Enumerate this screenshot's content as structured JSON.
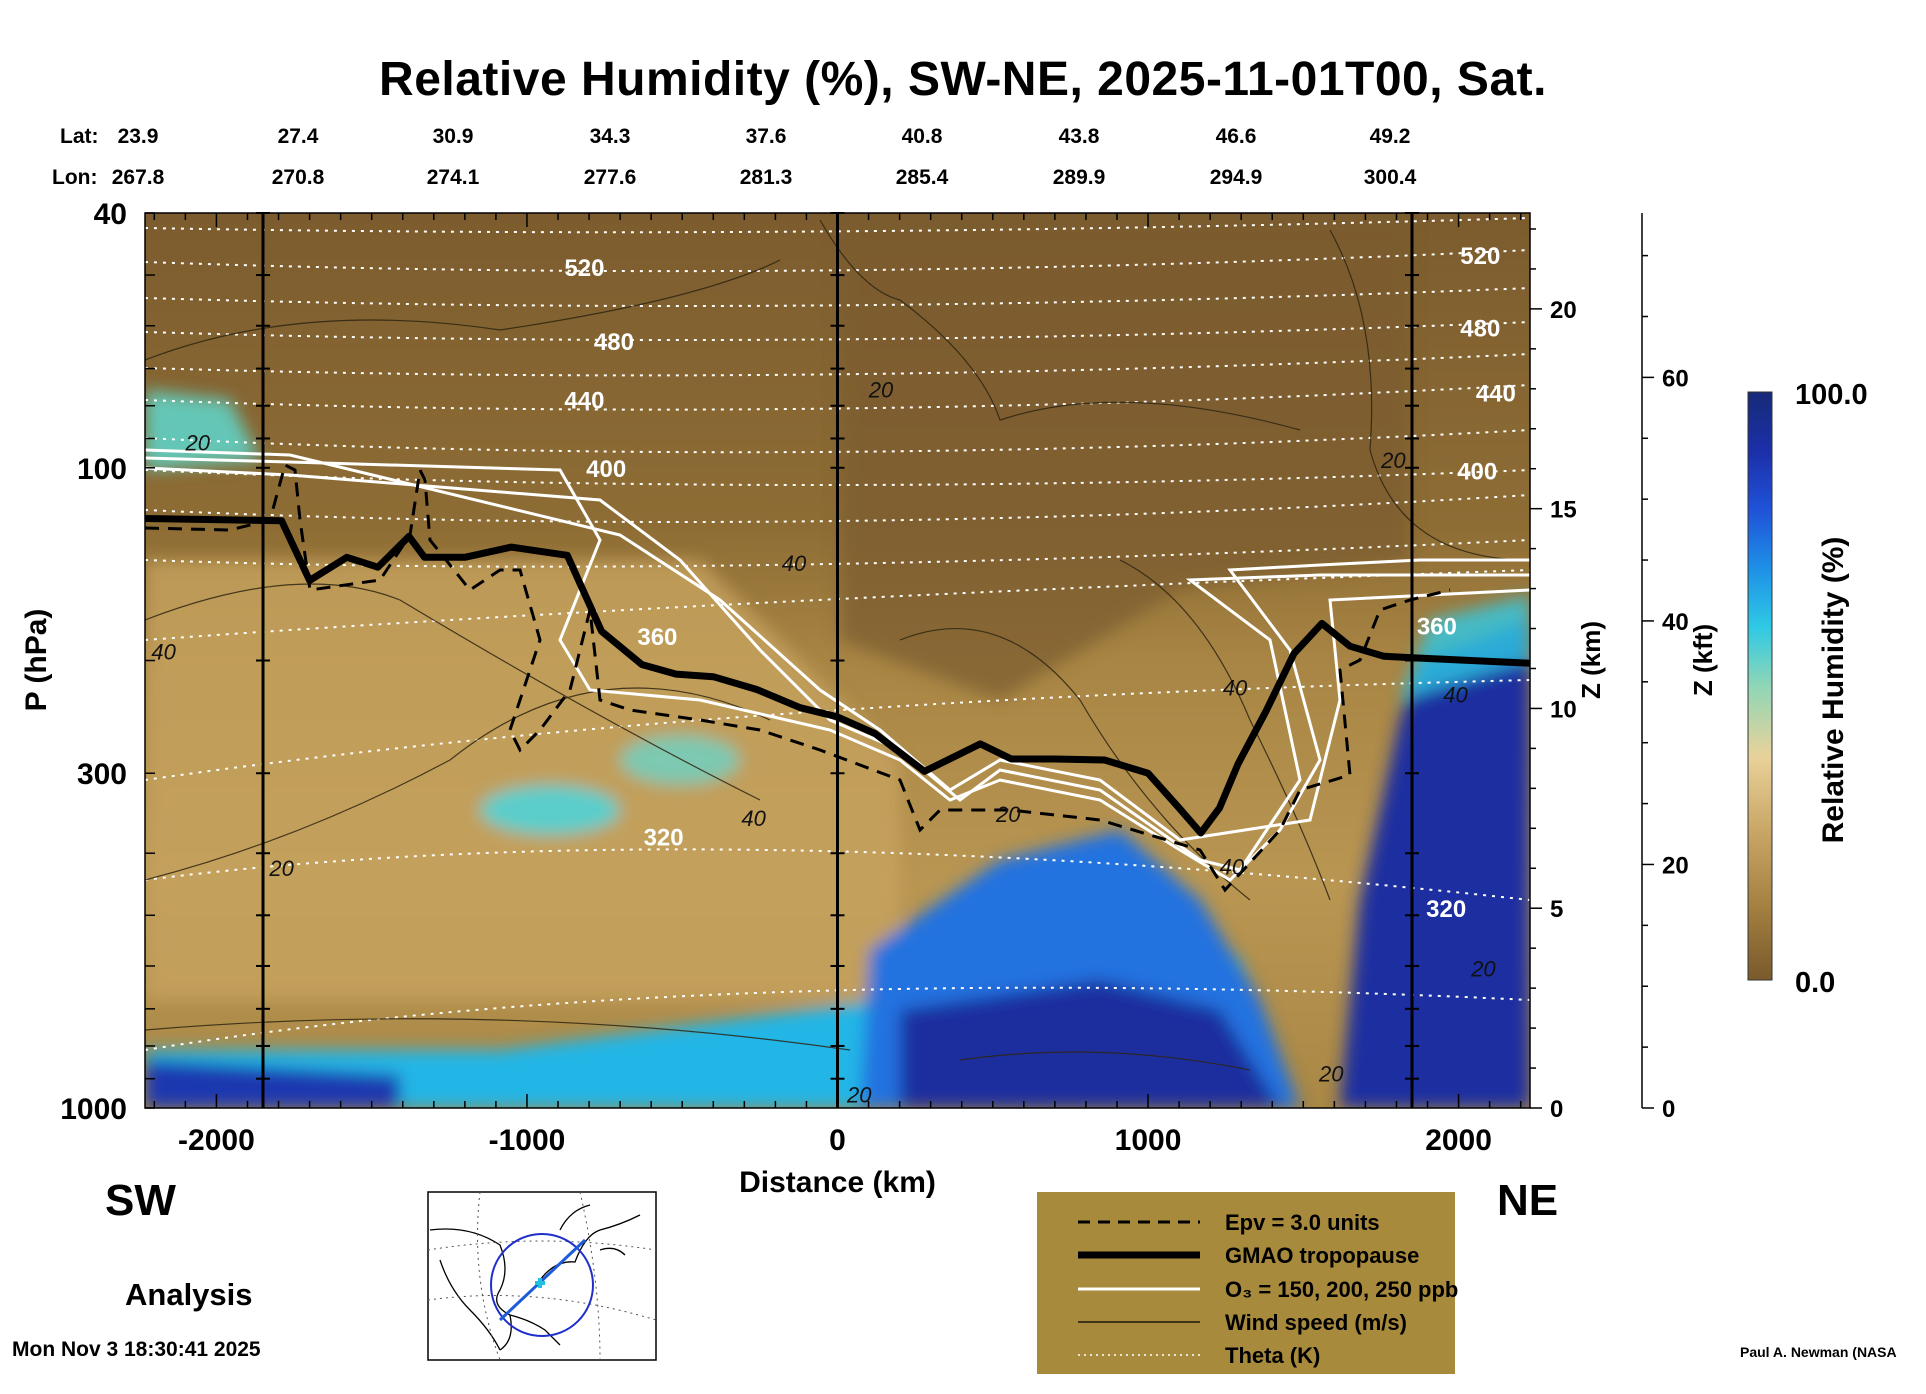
{
  "title": "Relative Humidity (%), SW-NE, 2025-11-01T00, Sat.",
  "header": {
    "lat_label": "Lat:",
    "lon_label": "Lon:",
    "lats": [
      "23.9",
      "27.4",
      "30.9",
      "34.3",
      "37.6",
      "40.8",
      "43.8",
      "46.6",
      "49.2"
    ],
    "lons": [
      "267.8",
      "270.8",
      "274.1",
      "277.6",
      "281.3",
      "285.4",
      "289.9",
      "294.9",
      "300.4"
    ]
  },
  "labels": {
    "sw": "SW",
    "ne": "NE",
    "analysis": "Analysis",
    "timestamp": "Mon Nov  3 18:30:41 2025",
    "credit": "Paul A. Newman (NASA"
  },
  "colorbar": {
    "max_label": "100.0",
    "min_label": "0.0",
    "title": "Relative Humidity (%)",
    "stops": [
      "#7a5a2c",
      "#a27e40",
      "#c8a565",
      "#e9d29a",
      "#8fd6b6",
      "#2fc9e5",
      "#1e90e6",
      "#1f52d8",
      "#1c2fa8",
      "#162a78"
    ]
  },
  "legend": {
    "background": "#a88a3d",
    "items": [
      {
        "label": "Epv = 3.0 units",
        "style": "dashed"
      },
      {
        "label": "GMAO tropopause",
        "style": "thick"
      },
      {
        "label": "O₃ = 150, 200, 250 ppb",
        "style": "white"
      },
      {
        "label": "Wind speed (m/s)",
        "style": "thin"
      },
      {
        "label": "Theta (K)",
        "style": "dotted"
      }
    ]
  },
  "chart_data": {
    "type": "heatmap",
    "xlabel": "Distance (km)",
    "ylabel": "P (hPa)",
    "xlim": [
      -2230,
      2230
    ],
    "ylim_pressure": [
      1000,
      40
    ],
    "x_ticks": [
      -2000,
      -1000,
      0,
      1000,
      2000
    ],
    "y_ticks": [
      40,
      100,
      300,
      1000
    ],
    "z_km_label": "Z (km)",
    "z_km_ticks": [
      0,
      5,
      10,
      15,
      20
    ],
    "z_kft_label": "Z (kft)",
    "z_kft_ticks": [
      0,
      20,
      40,
      60
    ],
    "vertical_markers_km": [
      -1850,
      0,
      1850
    ],
    "theta_contour_labels": [
      {
        "label": "520",
        "x": -815,
        "p": 49
      },
      {
        "label": "480",
        "x": -720,
        "p": 64
      },
      {
        "label": "440",
        "x": -815,
        "p": 79
      },
      {
        "label": "400",
        "x": -745,
        "p": 101
      },
      {
        "label": "360",
        "x": -580,
        "p": 185
      },
      {
        "label": "320",
        "x": -560,
        "p": 380
      },
      {
        "label": "520",
        "x": 2070,
        "p": 47
      },
      {
        "label": "480",
        "x": 2070,
        "p": 61
      },
      {
        "label": "440",
        "x": 2120,
        "p": 77
      },
      {
        "label": "400",
        "x": 2060,
        "p": 102
      },
      {
        "label": "360",
        "x": 1930,
        "p": 178
      },
      {
        "label": "320",
        "x": 1960,
        "p": 492
      }
    ],
    "wind_contour_labels": [
      {
        "label": "20",
        "x": -2060,
        "p": 92
      },
      {
        "label": "40",
        "x": -2170,
        "p": 195
      },
      {
        "label": "20",
        "x": -1790,
        "p": 425
      },
      {
        "label": "20",
        "x": 140,
        "p": 76
      },
      {
        "label": "40",
        "x": -140,
        "p": 142
      },
      {
        "label": "40",
        "x": -270,
        "p": 355
      },
      {
        "label": "20",
        "x": 550,
        "p": 350
      },
      {
        "label": "20",
        "x": 1790,
        "p": 98
      },
      {
        "label": "40",
        "x": 1280,
        "p": 222
      },
      {
        "label": "40",
        "x": 1270,
        "p": 423
      },
      {
        "label": "40",
        "x": 1990,
        "p": 228
      },
      {
        "label": "20",
        "x": 2080,
        "p": 610
      },
      {
        "label": "20",
        "x": 70,
        "p": 960
      },
      {
        "label": "20",
        "x": 1590,
        "p": 890
      }
    ],
    "tropopause_p": [
      [
        -2230,
        120
      ],
      [
        -1790,
        121
      ],
      [
        -1700,
        150
      ],
      [
        -1580,
        138
      ],
      [
        -1480,
        143
      ],
      [
        -1380,
        128
      ],
      [
        -1330,
        138
      ],
      [
        -1200,
        138
      ],
      [
        -1050,
        133
      ],
      [
        -870,
        137
      ],
      [
        -760,
        180
      ],
      [
        -630,
        203
      ],
      [
        -520,
        210
      ],
      [
        -400,
        212
      ],
      [
        -260,
        222
      ],
      [
        -120,
        237
      ],
      [
        0,
        245
      ],
      [
        120,
        260
      ],
      [
        280,
        298
      ],
      [
        460,
        270
      ],
      [
        560,
        285
      ],
      [
        700,
        285
      ],
      [
        860,
        286
      ],
      [
        1000,
        300
      ],
      [
        1100,
        340
      ],
      [
        1170,
        372
      ],
      [
        1230,
        340
      ],
      [
        1290,
        290
      ],
      [
        1380,
        240
      ],
      [
        1470,
        195
      ],
      [
        1560,
        175
      ],
      [
        1650,
        190
      ],
      [
        1760,
        197
      ],
      [
        1850,
        198
      ],
      [
        2230,
        202
      ]
    ],
    "colorbar_range": [
      0.0,
      100.0
    ]
  }
}
